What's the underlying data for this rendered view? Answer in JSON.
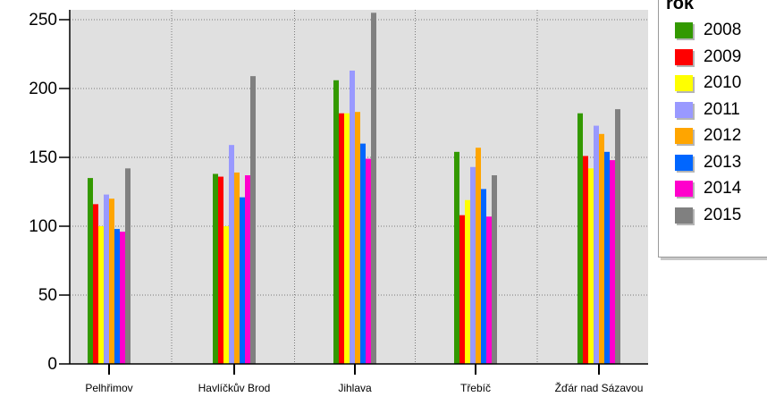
{
  "chart_data": {
    "type": "bar",
    "categories": [
      "Pelhřimov",
      "Havlíčkův Brod",
      "Jihlava",
      "Třebíč",
      "Žďár nad Sázavou"
    ],
    "ylim": [
      0,
      255
    ],
    "yticks": [
      0,
      50,
      100,
      150,
      200,
      250
    ],
    "grid": true,
    "legend_title": "rok",
    "legend_position": "top-right",
    "series": [
      {
        "name": "2008",
        "color": "#339900",
        "values": [
          135,
          138,
          206,
          154,
          182
        ]
      },
      {
        "name": "2009",
        "color": "#ff0000",
        "values": [
          116,
          136,
          182,
          108,
          151
        ]
      },
      {
        "name": "2010",
        "color": "#ffff00",
        "values": [
          100,
          100,
          182,
          119,
          142
        ]
      },
      {
        "name": "2011",
        "color": "#9999ff",
        "values": [
          123,
          159,
          213,
          143,
          173
        ]
      },
      {
        "name": "2012",
        "color": "#ffa500",
        "values": [
          120,
          139,
          183,
          157,
          167
        ]
      },
      {
        "name": "2013",
        "color": "#0066ff",
        "values": [
          98,
          121,
          160,
          127,
          154
        ]
      },
      {
        "name": "2014",
        "color": "#ff00cc",
        "values": [
          96,
          137,
          149,
          107,
          148
        ]
      },
      {
        "name": "2015",
        "color": "#808080",
        "values": [
          142,
          209,
          255,
          137,
          185
        ]
      }
    ]
  }
}
